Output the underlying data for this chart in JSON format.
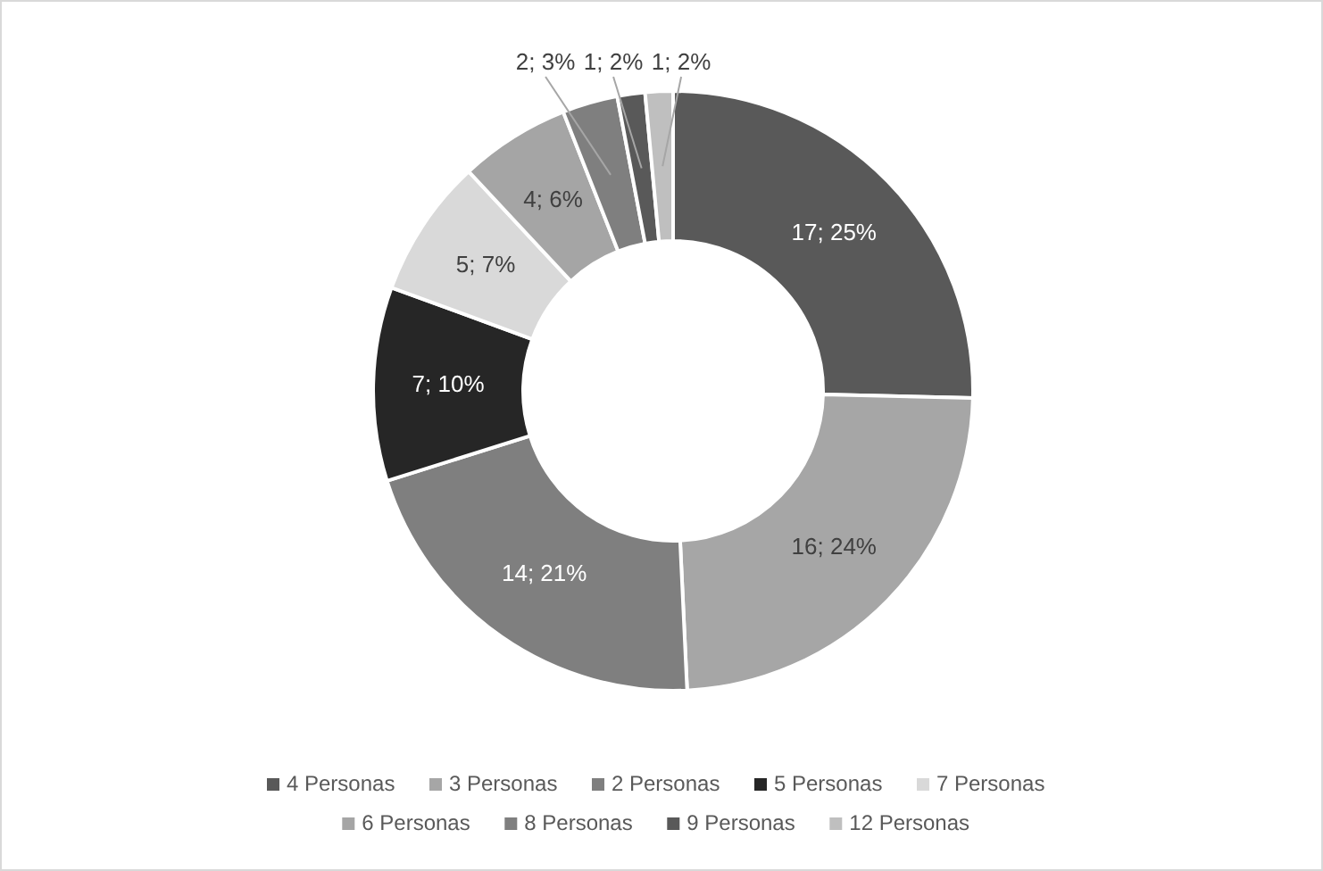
{
  "chart_data": {
    "type": "donut",
    "categories": [
      "4 Personas",
      "3 Personas",
      "2 Personas",
      "5 Personas",
      "7 Personas",
      "6 Personas",
      "8 Personas",
      "9 Personas",
      "12 Personas"
    ],
    "values": [
      17,
      16,
      14,
      7,
      5,
      4,
      2,
      1,
      1
    ],
    "value_labels": [
      "17; 25%",
      "16; 24%",
      "14; 21%",
      "7; 10%",
      "5; 7%",
      "4; 6%",
      "2; 3%",
      "1; 2%",
      "1; 2%"
    ],
    "colors": [
      "#595959",
      "#a6a6a6",
      "#7f7f7f",
      "#262626",
      "#d9d9d9",
      "#a5a5a5",
      "#7f7f7f",
      "#595959",
      "#bfbfbf"
    ],
    "legend": "bottom"
  }
}
